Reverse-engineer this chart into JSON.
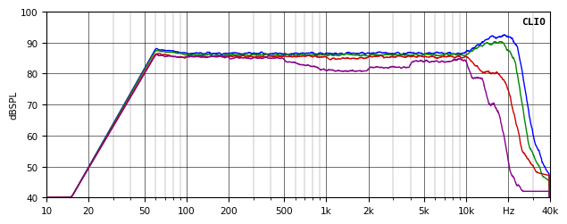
{
  "title": "CLIO",
  "ylabel": "dBSPL",
  "xlabel_ticks": [
    "10",
    "20",
    "50",
    "100",
    "200",
    "500",
    "1k",
    "2k",
    "5k",
    "10k",
    "Hz",
    "40k"
  ],
  "xlabel_freqs": [
    10,
    20,
    50,
    100,
    200,
    500,
    1000,
    2000,
    5000,
    10000,
    20000,
    40000
  ],
  "xmin": 10,
  "xmax": 40000,
  "ymin": 40,
  "ymax": 100,
  "yticks": [
    40,
    50,
    60,
    70,
    80,
    90,
    100
  ],
  "background_color": "#ffffff",
  "grid_color": "#000000",
  "curve_colors": [
    "#0000ff",
    "#008800",
    "#cc0000",
    "#880088"
  ]
}
